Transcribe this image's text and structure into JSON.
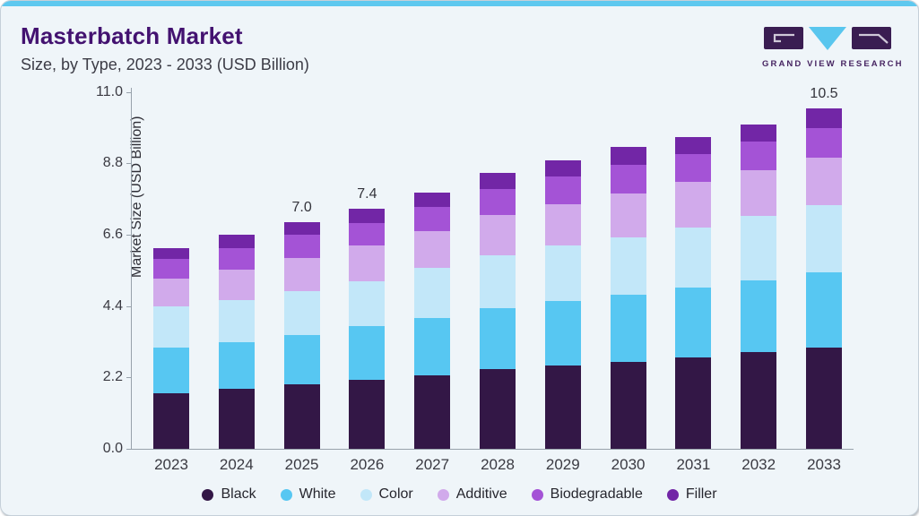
{
  "card": {
    "title": "Masterbatch Market",
    "subtitle": "Size, by Type, 2023 - 2033 (USD Billion)"
  },
  "logo": {
    "text": "GRAND VIEW RESEARCH",
    "colors": {
      "block": "#3a1d52",
      "triangle": "#59c6ee",
      "letter": "#cfc8d8",
      "text": "#472562"
    }
  },
  "chart_data": {
    "type": "bar",
    "stacked": true,
    "title": "Masterbatch Market Size, by Type, 2023 - 2033 (USD Billion)",
    "xlabel": "",
    "ylabel": "Market Size (USD Billion)",
    "ylim": [
      0,
      11
    ],
    "grid": false,
    "legend_position": "bottom",
    "y_tick_labels": [
      "0.0",
      "2.2",
      "4.4",
      "6.6",
      "8.8",
      "11.0"
    ],
    "categories": [
      "2023",
      "2024",
      "2025",
      "2026",
      "2027",
      "2028",
      "2029",
      "2030",
      "2031",
      "2032",
      "2033"
    ],
    "bar_total_labels": [
      "",
      "",
      "7.0",
      "7.4",
      "",
      "",
      "",
      "",
      "",
      "",
      "10.5"
    ],
    "totals": [
      6.2,
      6.6,
      7.0,
      7.4,
      7.9,
      8.5,
      8.9,
      9.3,
      9.6,
      10.0,
      10.5
    ],
    "series": [
      {
        "name": "Black",
        "color": "#331746",
        "values": [
          1.72,
          1.86,
          1.98,
          2.14,
          2.26,
          2.47,
          2.57,
          2.68,
          2.83,
          2.98,
          3.11
        ]
      },
      {
        "name": "White",
        "color": "#57c7f2",
        "values": [
          1.4,
          1.42,
          1.54,
          1.64,
          1.78,
          1.87,
          1.98,
          2.06,
          2.13,
          2.22,
          2.34
        ]
      },
      {
        "name": "Color",
        "color": "#c2e7f9",
        "values": [
          1.26,
          1.3,
          1.35,
          1.39,
          1.54,
          1.63,
          1.71,
          1.79,
          1.87,
          1.97,
          2.05
        ]
      },
      {
        "name": "Additive",
        "color": "#d1aaeb",
        "values": [
          0.87,
          0.94,
          1.02,
          1.09,
          1.12,
          1.23,
          1.29,
          1.34,
          1.4,
          1.42,
          1.48
        ]
      },
      {
        "name": "Biodegradable",
        "color": "#a453d6",
        "values": [
          0.6,
          0.68,
          0.72,
          0.71,
          0.77,
          0.82,
          0.86,
          0.88,
          0.86,
          0.89,
          0.91
        ]
      },
      {
        "name": "Filler",
        "color": "#7226a6",
        "values": [
          0.35,
          0.4,
          0.39,
          0.43,
          0.43,
          0.48,
          0.49,
          0.55,
          0.51,
          0.52,
          0.61
        ]
      }
    ]
  }
}
